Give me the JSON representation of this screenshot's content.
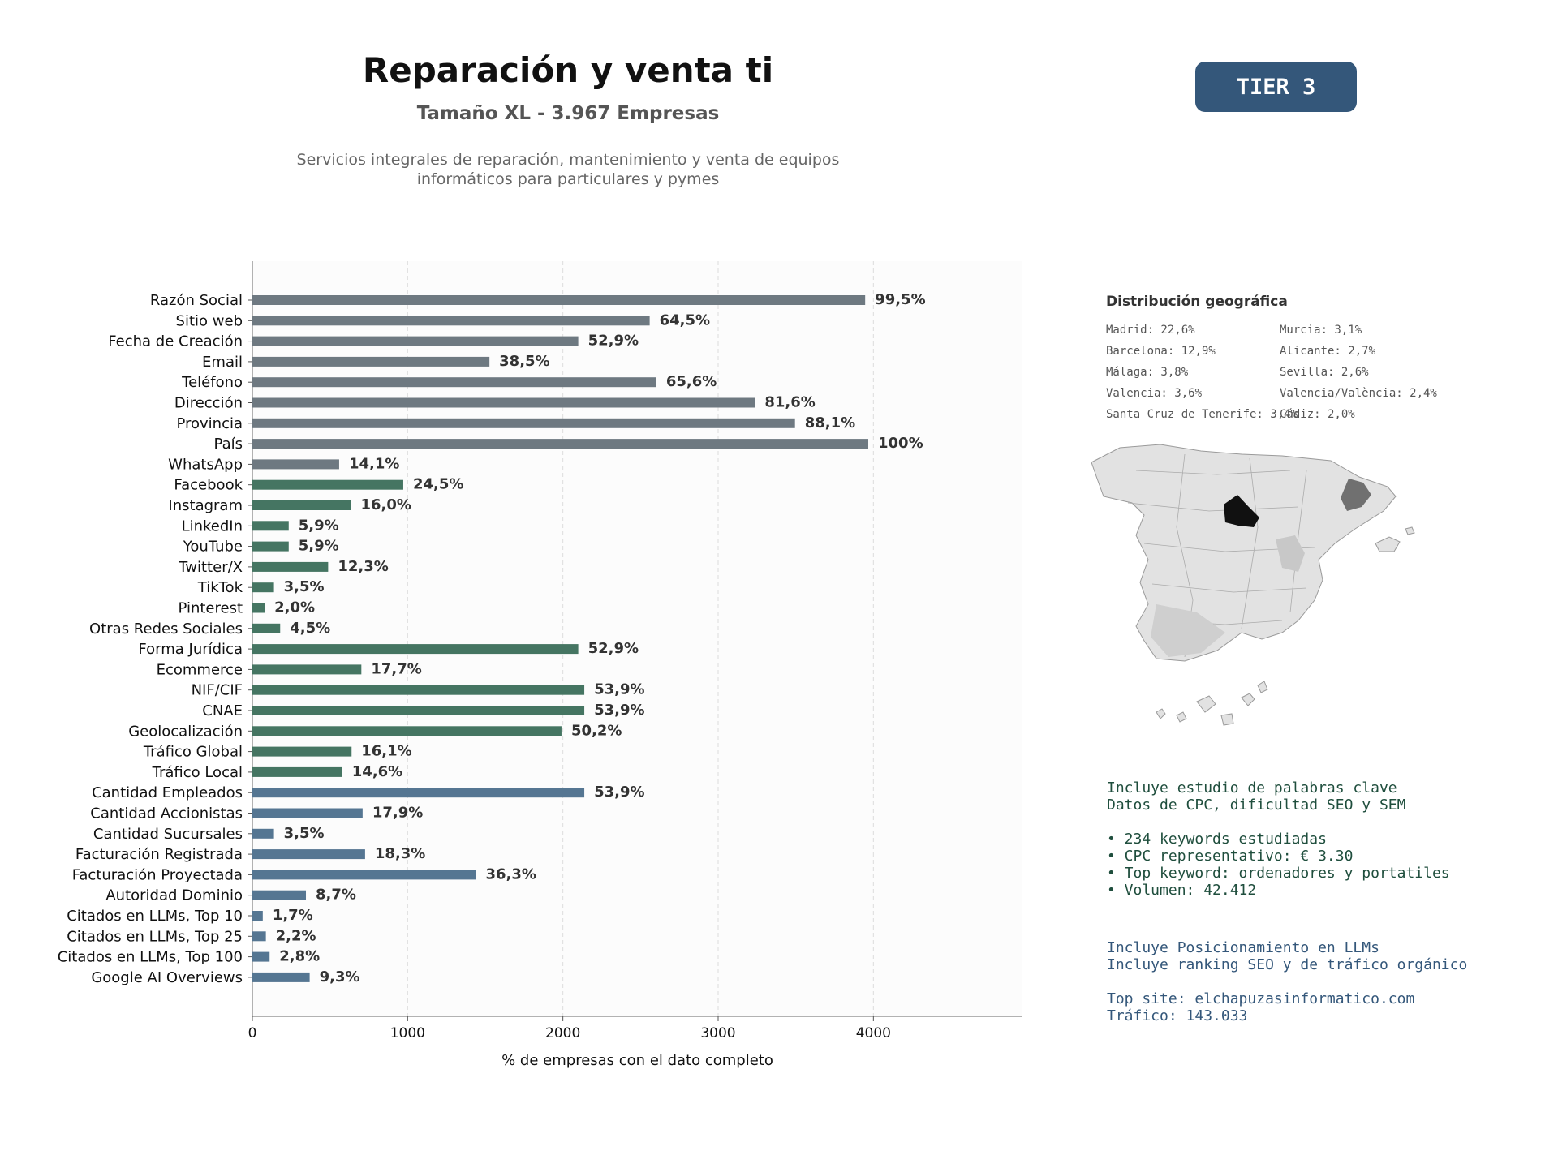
{
  "header": {
    "title": "Reparación y venta ti",
    "subtitle": "Tamaño XL - 3.967 Empresas",
    "description_line1": "Servicios integrales de reparación, mantenimiento y venta de equipos",
    "description_line2": "informáticos para particulares y pymes",
    "tier_badge": "TIER 3"
  },
  "colors": {
    "gray": "#6e7981",
    "green": "#457562",
    "blue": "#557692",
    "badge": "#34577a"
  },
  "chart_data": {
    "type": "bar",
    "orientation": "horizontal",
    "xlabel": "% de empresas con el dato completo",
    "xlim": [
      0,
      4960
    ],
    "xticks": [
      0,
      1000,
      2000,
      3000,
      4000
    ],
    "grid": "vertical dashed",
    "categories": [
      "Razón Social",
      "Sitio web",
      "Fecha de Creación",
      "Email",
      "Teléfono",
      "Dirección",
      "Provincia",
      "País",
      "WhatsApp",
      "Facebook",
      "Instagram",
      "LinkedIn",
      "YouTube",
      "Twitter/X",
      "TikTok",
      "Pinterest",
      "Otras Redes Sociales",
      "Forma Jurídica",
      "Ecommerce",
      "NIF/CIF",
      "CNAE",
      "Geolocalización",
      "Tráfico Global",
      "Tráfico Local",
      "Cantidad Empleados",
      "Cantidad Accionistas",
      "Cantidad Sucursales",
      "Facturación Registrada",
      "Facturación Proyectada",
      "Autoridad Dominio",
      "Citados en LLMs, Top 10",
      "Citados en LLMs, Top 25",
      "Citados en LLMs, Top 100",
      "Google AI Overviews"
    ],
    "values": [
      3947,
      2559,
      2099,
      1527,
      2602,
      3237,
      3495,
      3967,
      559,
      972,
      635,
      234,
      234,
      488,
      139,
      79,
      179,
      2099,
      702,
      2138,
      2138,
      1991,
      639,
      579,
      2138,
      710,
      139,
      726,
      1440,
      345,
      67,
      87,
      111,
      369
    ],
    "labels": [
      "99,5%",
      "64,5%",
      "52,9%",
      "38,5%",
      "65,6%",
      "81,6%",
      "88,1%",
      "100%",
      "14,1%",
      "24,5%",
      "16,0%",
      "5,9%",
      "5,9%",
      "12,3%",
      "3,5%",
      "2,0%",
      "4,5%",
      "52,9%",
      "17,7%",
      "53,9%",
      "53,9%",
      "50,2%",
      "16,1%",
      "14,6%",
      "53,9%",
      "17,9%",
      "3,5%",
      "18,3%",
      "36,3%",
      "8,7%",
      "1,7%",
      "2,2%",
      "2,8%",
      "9,3%"
    ],
    "groups": [
      "gray",
      "gray",
      "gray",
      "gray",
      "gray",
      "gray",
      "gray",
      "gray",
      "gray",
      "green",
      "green",
      "green",
      "green",
      "green",
      "green",
      "green",
      "green",
      "green",
      "green",
      "green",
      "green",
      "green",
      "green",
      "green",
      "blue",
      "blue",
      "blue",
      "blue",
      "blue",
      "blue",
      "blue",
      "blue",
      "blue",
      "blue"
    ]
  },
  "geo": {
    "title": "Distribución geográfica",
    "items": [
      "Madrid: 22,6%",
      "Murcia: 3,1%",
      "Barcelona: 12,9%",
      "Alicante: 2,7%",
      "Málaga: 3,8%",
      "Sevilla: 2,6%",
      "Valencia: 3,6%",
      "Valencia/València: 2,4%",
      "Santa Cruz de Tenerife: 3,4%",
      "Cádiz: 2,0%"
    ]
  },
  "keywords": {
    "line1": "Incluye estudio de palabras clave",
    "line2": "Datos de CPC, dificultad SEO y SEM",
    "bullet1": "• 234 keywords estudiadas",
    "bullet2": "• CPC representativo: € 3.30",
    "bullet3": "• Top keyword: ordenadores y portatiles",
    "bullet4": "• Volumen: 42.412"
  },
  "llm": {
    "line1": "Incluye Posicionamiento en LLMs",
    "line2": "Incluye ranking SEO y de tráfico orgánico",
    "top_site": "Top site: elchapuzasinformatico.com",
    "traffic": "Tráfico: 143.033"
  }
}
